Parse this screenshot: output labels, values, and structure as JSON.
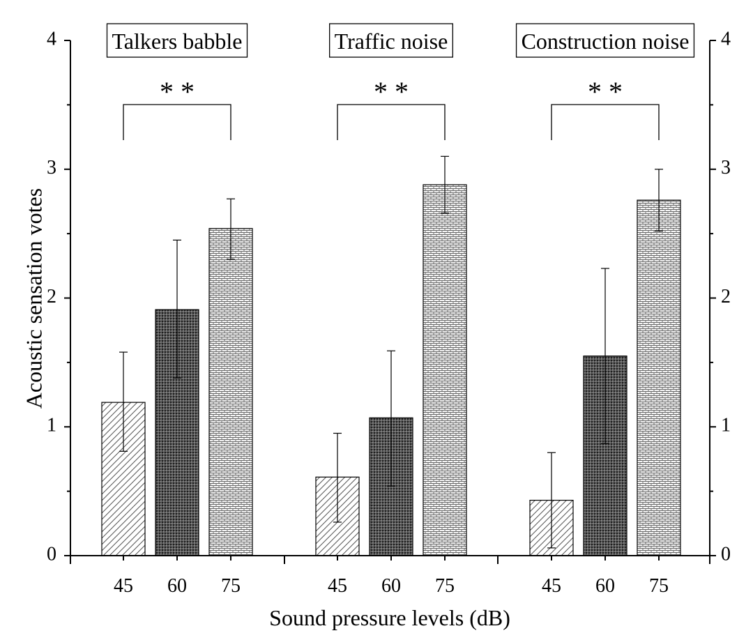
{
  "chart_data": {
    "type": "bar",
    "ylabel": "Acoustic sensation votes",
    "xlabel": "Sound pressure levels (dB)",
    "ylim": [
      0,
      4
    ],
    "yticks": [
      0,
      1,
      2,
      3,
      4
    ],
    "categories": [
      "45",
      "60",
      "75"
    ],
    "groups": [
      {
        "name": "Talkers babble",
        "significance": "* *",
        "bars": [
          {
            "category": "45",
            "value": 1.19,
            "err_low": 0.81,
            "err_high": 1.58,
            "pattern": "diagonal"
          },
          {
            "category": "60",
            "value": 1.91,
            "err_low": 1.38,
            "err_high": 2.45,
            "pattern": "dense-dots"
          },
          {
            "category": "75",
            "value": 2.54,
            "err_low": 2.3,
            "err_high": 2.77,
            "pattern": "brick"
          }
        ]
      },
      {
        "name": "Traffic noise",
        "significance": "* *",
        "bars": [
          {
            "category": "45",
            "value": 0.61,
            "err_low": 0.26,
            "err_high": 0.95,
            "pattern": "diagonal"
          },
          {
            "category": "60",
            "value": 1.07,
            "err_low": 0.54,
            "err_high": 1.59,
            "pattern": "dense-dots"
          },
          {
            "category": "75",
            "value": 2.88,
            "err_low": 2.66,
            "err_high": 3.1,
            "pattern": "brick"
          }
        ]
      },
      {
        "name": "Construction noise",
        "significance": "* *",
        "bars": [
          {
            "category": "45",
            "value": 0.43,
            "err_low": 0.06,
            "err_high": 0.8,
            "pattern": "diagonal"
          },
          {
            "category": "60",
            "value": 1.55,
            "err_low": 0.87,
            "err_high": 2.23,
            "pattern": "dense-dots"
          },
          {
            "category": "75",
            "value": 2.76,
            "err_low": 2.52,
            "err_high": 3.0,
            "pattern": "brick"
          }
        ]
      }
    ]
  }
}
